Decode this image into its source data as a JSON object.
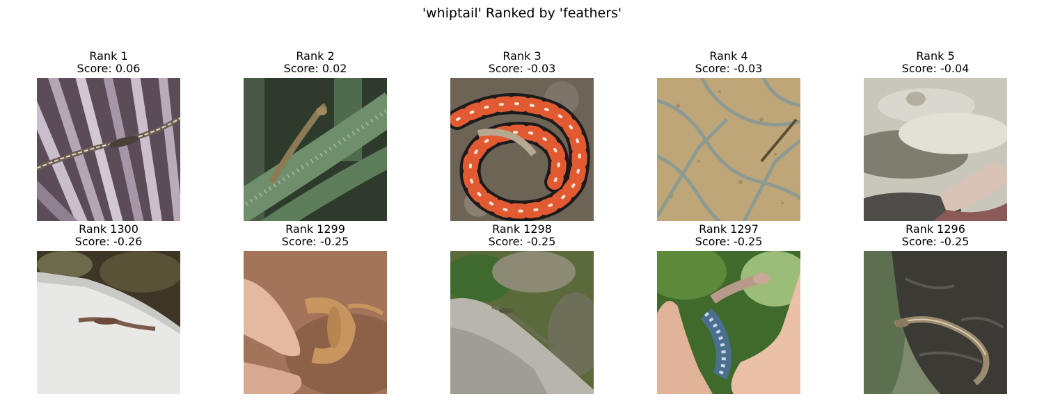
{
  "title": "'whiptail' Ranked by 'feathers'",
  "panels": [
    {
      "rank": "Rank 1",
      "score": "Score: 0.06",
      "image": "lizard-on-palm-fronds"
    },
    {
      "rank": "Rank 2",
      "score": "Score: 0.02",
      "image": "lizard-on-cactus"
    },
    {
      "rank": "Rank 3",
      "score": "Score: -0.03",
      "image": "coiled-red-black-snake"
    },
    {
      "rank": "Rank 4",
      "score": "Score: -0.03",
      "image": "chain-link-fence-on-sand"
    },
    {
      "rank": "Rank 5",
      "score": "Score: -0.04",
      "image": "painted-reclining-figure"
    },
    {
      "rank": "Rank 1300",
      "score": "Score: -0.26",
      "image": "lizard-on-white-wall"
    },
    {
      "rank": "Rank 1299",
      "score": "Score: -0.25",
      "image": "lizard-held-in-hand"
    },
    {
      "rank": "Rank 1298",
      "score": "Score: -0.25",
      "image": "lizard-on-rock"
    },
    {
      "rank": "Rank 1297",
      "score": "Score: -0.25",
      "image": "lizard-held-in-fingers"
    },
    {
      "rank": "Rank 1296",
      "score": "Score: -0.25",
      "image": "lizard-on-bark"
    }
  ]
}
